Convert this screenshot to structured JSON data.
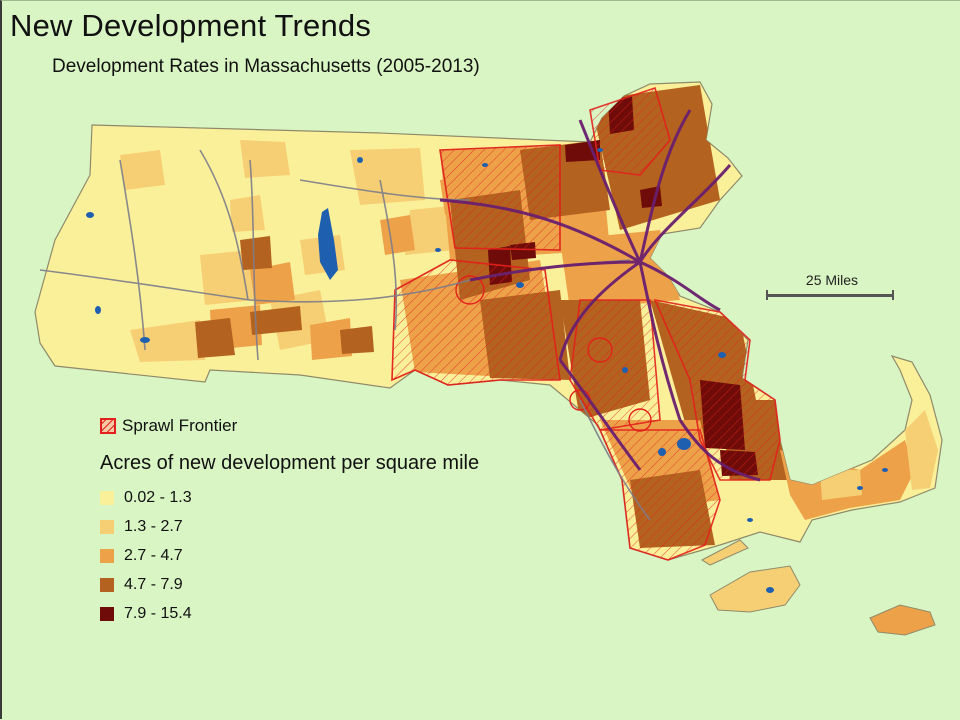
{
  "title": "New Development Trends",
  "subtitle": "Development Rates in Massachusetts (2005-2013)",
  "scale": {
    "label": "25 Miles"
  },
  "legend": {
    "sprawl_label": "Sprawl Frontier",
    "heading": "Acres of new development per square mile",
    "classes": [
      {
        "label": "0.02 - 1.3",
        "color": "#fbf09a"
      },
      {
        "label": "1.3 - 2.7",
        "color": "#f6cf74"
      },
      {
        "label": "2.7 - 4.7",
        "color": "#eda24a"
      },
      {
        "label": "4.7 - 7.9",
        "color": "#b4621f"
      },
      {
        "label": "7.9 - 15.4",
        "color": "#6f0b08"
      }
    ]
  },
  "colors": {
    "background": "#d9f5c4",
    "water": "#1f5fb0",
    "sprawl_outline": "#e2211c",
    "highway": "#6a1f6e",
    "road": "#7d7d8a"
  }
}
